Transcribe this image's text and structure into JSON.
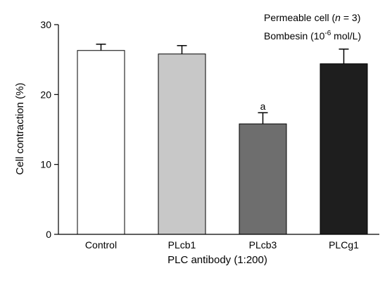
{
  "chart_data": {
    "type": "bar",
    "categories": [
      "Control",
      "PLcb1",
      "PLcb3",
      "PLCg1"
    ],
    "values": [
      26.3,
      25.8,
      15.8,
      24.4
    ],
    "errors": [
      0.9,
      1.2,
      1.6,
      2.1
    ],
    "bar_colors": [
      "#ffffff",
      "#c8c8c8",
      "#6e6e6e",
      "#1e1e1e"
    ],
    "significance": [
      "",
      "",
      "a",
      ""
    ],
    "xlabel": "PLC antibody (1:200)",
    "ylabel": "Cell contraction (%)",
    "ylim": [
      0,
      30
    ],
    "yticks": [
      0,
      10,
      20,
      30
    ],
    "annotation": {
      "line1_prefix": "Permeable cell (",
      "line1_italic": "n",
      "line1_suffix": " = 3)",
      "line2_prefix": "Bombesin (10",
      "line2_sup": "-6",
      "line2_suffix": " mol/L)"
    },
    "grid": false,
    "legend": "none"
  }
}
